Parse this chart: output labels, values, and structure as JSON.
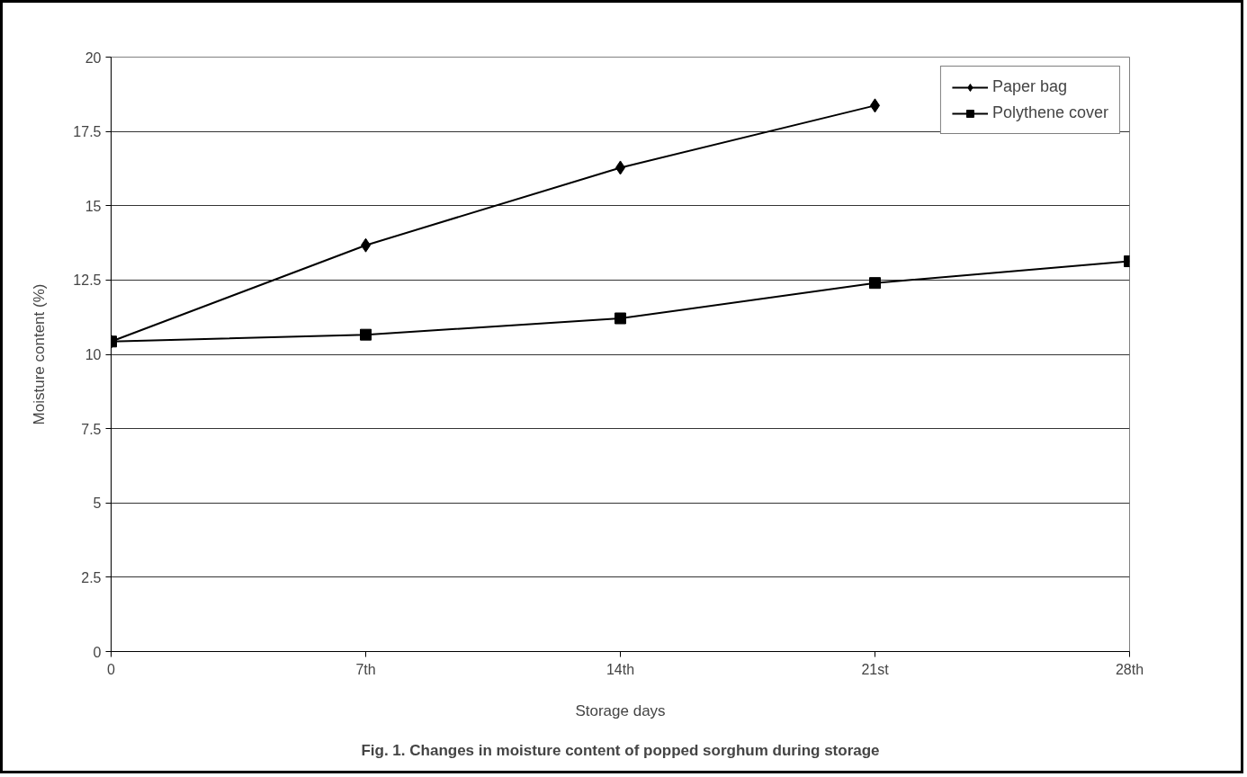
{
  "chart_data": {
    "type": "line",
    "title": "Fig. 1. Changes in moisture content of popped sorghum during storage",
    "xlabel": "Storage days",
    "ylabel": "Moisture content (%)",
    "categories": [
      "0",
      "7th",
      "14th",
      "21st",
      "28th"
    ],
    "ylim": [
      0,
      20
    ],
    "yticks": [
      0,
      2.5,
      5,
      7.5,
      10,
      12.5,
      15,
      17.5,
      20
    ],
    "grid": "y",
    "legend": "top right",
    "line_style": "solid",
    "series": [
      {
        "name": "Paper bag",
        "color": "#000000",
        "marker": "diamond",
        "values": [
          10.43,
          13.67,
          16.28,
          18.37,
          null
        ]
      },
      {
        "name": "Polythene cover",
        "color": "#000000",
        "marker": "square",
        "values": [
          10.43,
          10.66,
          11.21,
          12.4,
          13.13
        ]
      }
    ]
  }
}
